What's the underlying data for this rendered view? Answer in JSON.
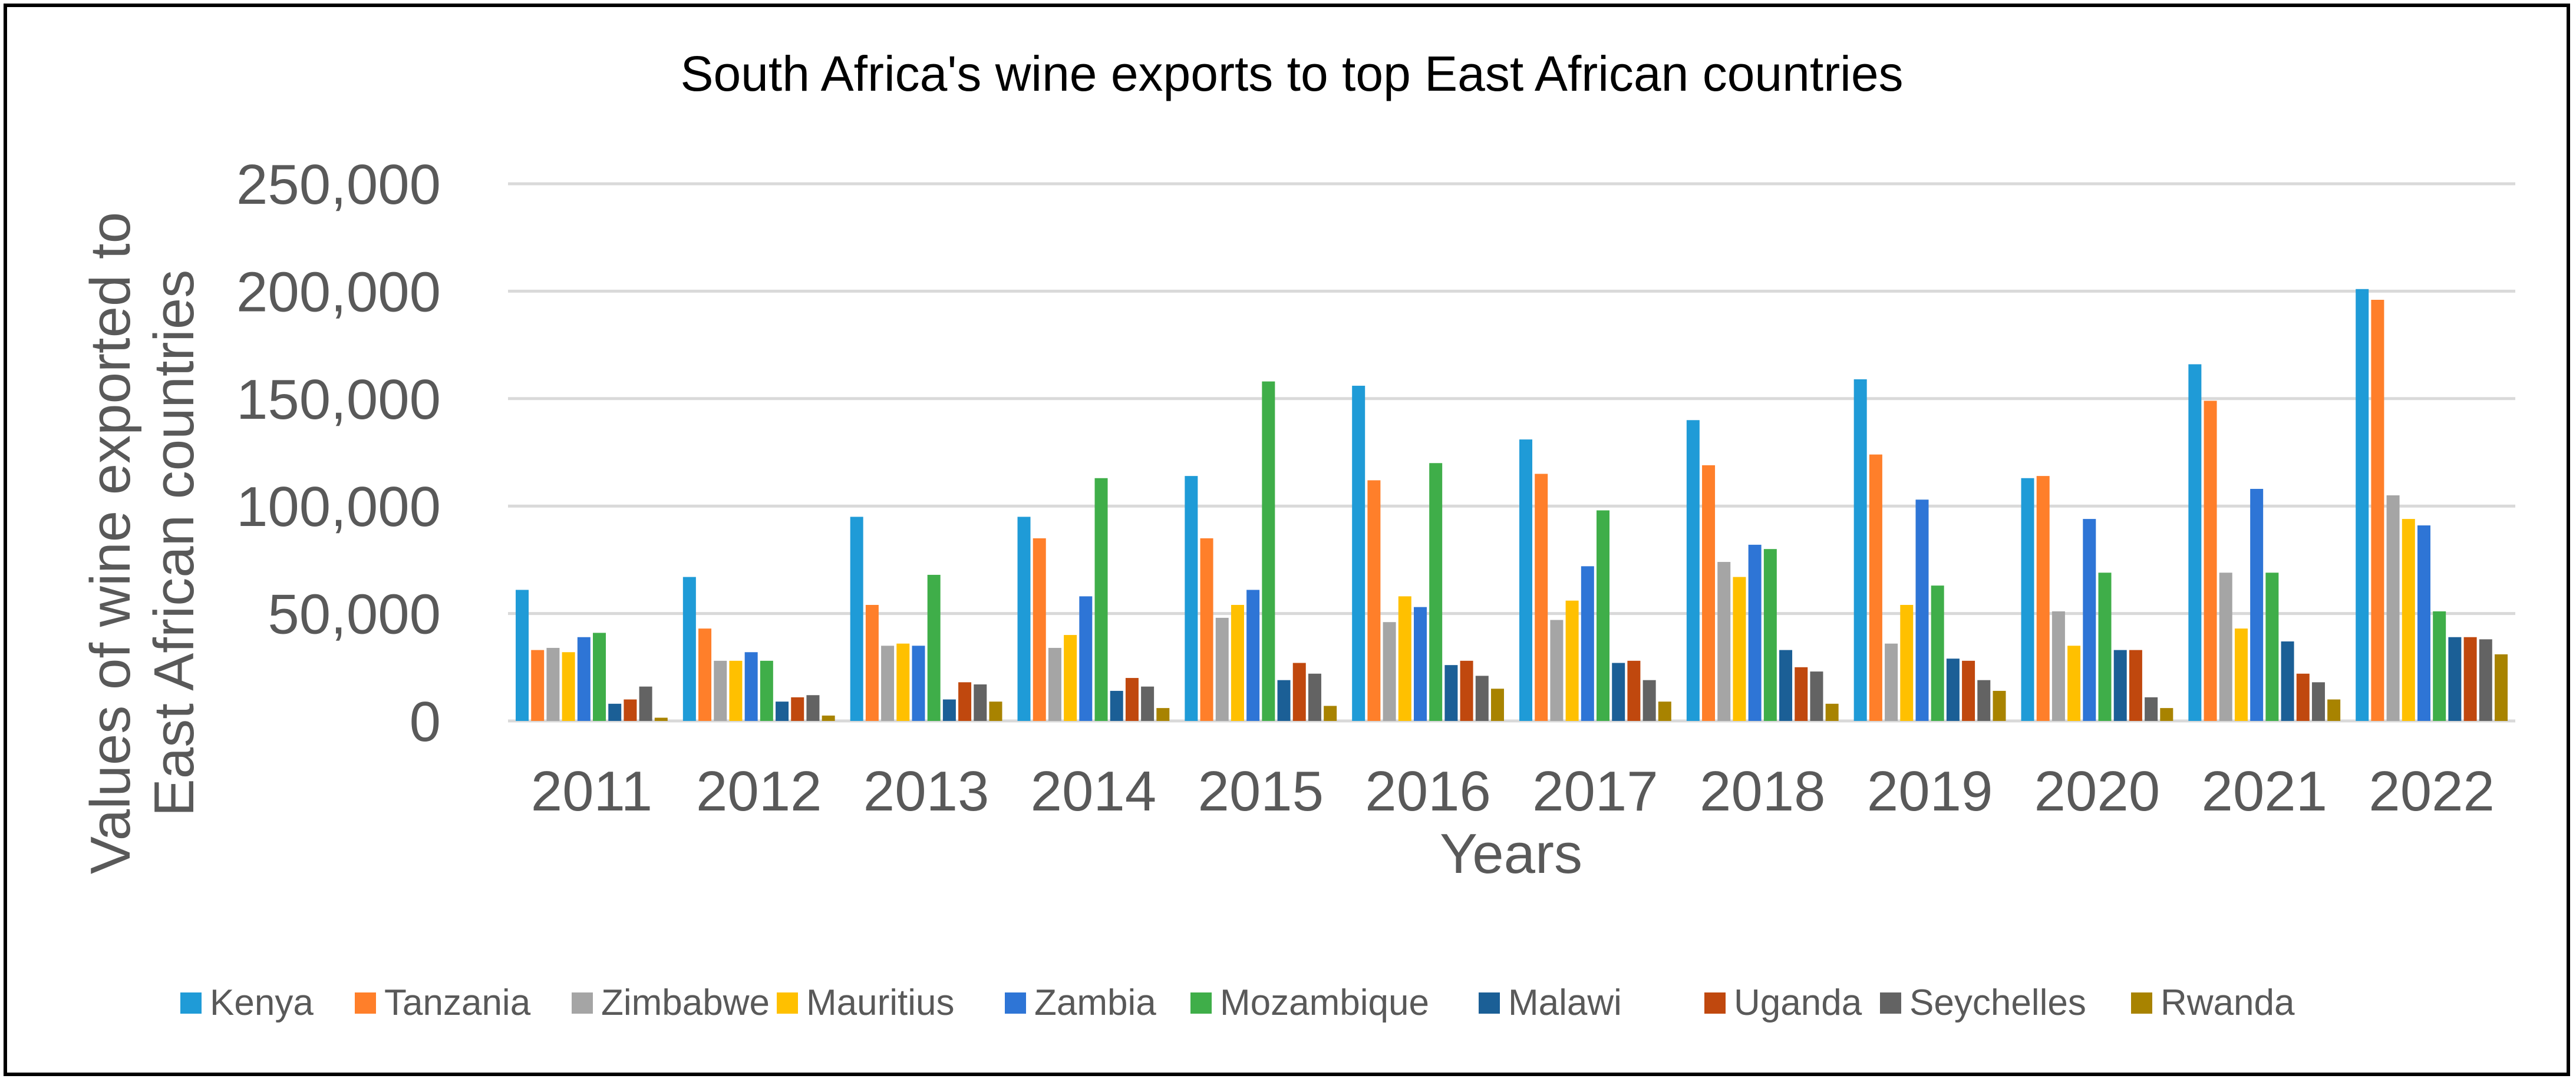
{
  "chart_data": {
    "type": "bar",
    "title": "South Africa's wine exports to top East African countries",
    "xlabel": "Years",
    "ylabel_lines": [
      "Values of wine exported to",
      "East African countries"
    ],
    "ylim": [
      0,
      250000
    ],
    "yticks": [
      0,
      50000,
      100000,
      150000,
      200000,
      250000
    ],
    "ytick_labels": [
      "0",
      "50,000",
      "100,000",
      "150,000",
      "200,000",
      "250,000"
    ],
    "grid": true,
    "legend_position": "bottom",
    "categories": [
      "2011",
      "2012",
      "2013",
      "2014",
      "2015",
      "2016",
      "2017",
      "2018",
      "2019",
      "2020",
      "2021",
      "2022"
    ],
    "series": [
      {
        "name": "Kenya",
        "color": "#1f9bd7",
        "values": [
          61000,
          67000,
          95000,
          95000,
          114000,
          156000,
          131000,
          140000,
          159000,
          113000,
          166000,
          201000
        ]
      },
      {
        "name": "Tanzania",
        "color": "#ff7f2a",
        "values": [
          33000,
          43000,
          54000,
          85000,
          85000,
          112000,
          115000,
          119000,
          124000,
          114000,
          149000,
          196000
        ]
      },
      {
        "name": "Zimbabwe",
        "color": "#a5a5a5",
        "values": [
          34000,
          28000,
          35000,
          34000,
          48000,
          46000,
          47000,
          74000,
          36000,
          51000,
          69000,
          105000
        ]
      },
      {
        "name": "Mauritius",
        "color": "#ffc000",
        "values": [
          32000,
          28000,
          36000,
          40000,
          54000,
          58000,
          56000,
          67000,
          54000,
          35000,
          43000,
          94000
        ]
      },
      {
        "name": "Zambia",
        "color": "#2e75d6",
        "values": [
          39000,
          32000,
          35000,
          58000,
          61000,
          53000,
          72000,
          82000,
          103000,
          94000,
          108000,
          91000
        ]
      },
      {
        "name": "Mozambique",
        "color": "#3fae49",
        "values": [
          41000,
          28000,
          68000,
          113000,
          158000,
          120000,
          98000,
          80000,
          63000,
          69000,
          69000,
          51000
        ]
      },
      {
        "name": "Malawi",
        "color": "#1b5f96",
        "values": [
          8000,
          9000,
          10000,
          14000,
          19000,
          26000,
          27000,
          33000,
          29000,
          33000,
          37000,
          39000
        ]
      },
      {
        "name": "Uganda",
        "color": "#c0480e",
        "values": [
          10000,
          11000,
          18000,
          20000,
          27000,
          28000,
          28000,
          25000,
          28000,
          33000,
          22000,
          39000
        ]
      },
      {
        "name": "Seychelles",
        "color": "#636363",
        "values": [
          16000,
          12000,
          17000,
          16000,
          22000,
          21000,
          19000,
          23000,
          19000,
          11000,
          18000,
          38000
        ]
      },
      {
        "name": "Rwanda",
        "color": "#a88300",
        "values": [
          1500,
          2500,
          9000,
          6000,
          7000,
          15000,
          9000,
          8000,
          14000,
          6000,
          10000,
          31000
        ]
      }
    ]
  }
}
